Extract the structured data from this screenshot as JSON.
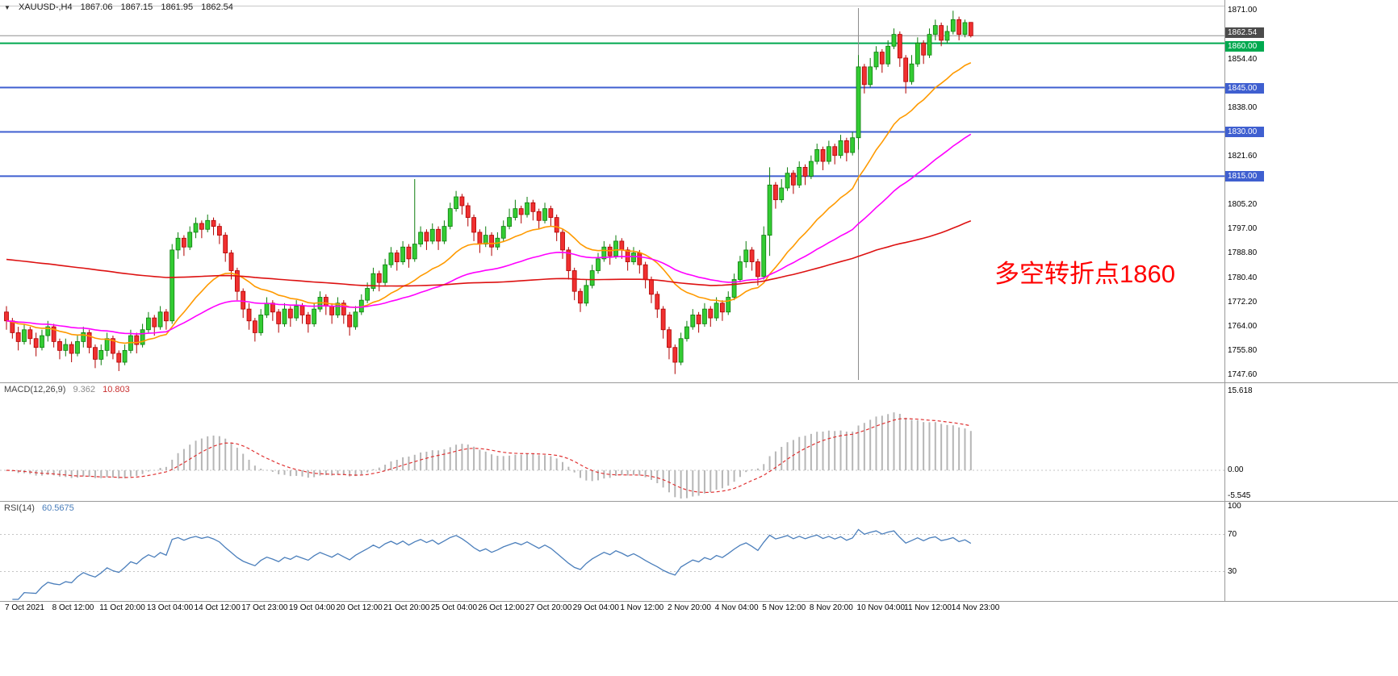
{
  "window": {
    "symbol_period": "XAUUSD-,H4",
    "open": "1867.06",
    "high": "1867.15",
    "low": "1861.95",
    "close": "1862.54"
  },
  "annotation": {
    "text": "多空转折点1860",
    "color": "#ff0000"
  },
  "price_axis": {
    "current_price": {
      "label": "1862.54",
      "value": 1862.54,
      "bg": "#4b4b4b"
    },
    "ticks": [
      {
        "label": "1871.00",
        "value": 1871.0
      },
      {
        "label": "1854.40",
        "value": 1854.4
      },
      {
        "label": "1838.00",
        "value": 1838.0
      },
      {
        "label": "1821.60",
        "value": 1821.6
      },
      {
        "label": "1805.20",
        "value": 1805.2
      },
      {
        "label": "1797.00",
        "value": 1797.0
      },
      {
        "label": "1788.80",
        "value": 1788.8
      },
      {
        "label": "1780.40",
        "value": 1780.4
      },
      {
        "label": "1772.20",
        "value": 1772.2
      },
      {
        "label": "1764.00",
        "value": 1764.0
      },
      {
        "label": "1755.80",
        "value": 1755.8
      },
      {
        "label": "1747.60",
        "value": 1747.6
      }
    ]
  },
  "hlines": [
    {
      "label": "1860.00",
      "value": 1860.0,
      "color": "#00A94F"
    },
    {
      "label": "1845.00",
      "value": 1845.0,
      "color": "#3F5FD0"
    },
    {
      "label": "1830.00",
      "value": 1830.0,
      "color": "#3F5FD0"
    },
    {
      "label": "1815.00",
      "value": 1815.0,
      "color": "#3F5FD0"
    }
  ],
  "macd_panel": {
    "label": "MACD(12,26,9)",
    "value_main": "9.362",
    "value_signal": "10.803",
    "axis": [
      "15.618",
      "0.00",
      "-5.545"
    ]
  },
  "rsi_panel": {
    "label": "RSI(14)",
    "value": "60.5675",
    "axis": [
      "100",
      "70",
      "30"
    ],
    "levels": [
      70,
      30
    ]
  },
  "time_axis": {
    "bars_per_label": 8,
    "labels": [
      "7 Oct 2021",
      "8 Oct 12:00",
      "11 Oct 20:00",
      "13 Oct 04:00",
      "14 Oct 12:00",
      "17 Oct 23:00",
      "19 Oct 04:00",
      "20 Oct 12:00",
      "21 Oct 20:00",
      "25 Oct 04:00",
      "26 Oct 12:00",
      "27 Oct 20:00",
      "29 Oct 04:00",
      "1 Nov 12:00",
      "2 Nov 20:00",
      "4 Nov 04:00",
      "5 Nov 12:00",
      "8 Nov 20:00",
      "10 Nov 04:00",
      "11 Nov 12:00",
      "14 Nov 23:00"
    ]
  },
  "chart_data": {
    "type": "candlestick",
    "symbol": "XAUUSD-",
    "timeframe": "H4",
    "ylim": [
      1746,
      1873
    ],
    "vline_bar_index": 144,
    "colors": {
      "up": "#33CC33",
      "up_border": "#0E7D0E",
      "down": "#F03030",
      "down_border": "#B00000"
    },
    "moving_averages": [
      {
        "name": "ma-fast",
        "type": "ema",
        "period": 21,
        "color": "#FF9A00"
      },
      {
        "name": "ma-mid",
        "type": "ema",
        "period": 55,
        "color": "#FF00FF"
      },
      {
        "name": "ma-slow",
        "type": "sma",
        "period": 120,
        "color": "#DD1111",
        "seed": 1787
      }
    ],
    "indicators": [
      {
        "name": "MACD",
        "params": [
          12,
          26,
          9
        ],
        "shown_values": [
          9.362,
          10.803
        ],
        "axis_range": [
          -5.545,
          15.618
        ]
      },
      {
        "name": "RSI",
        "params": [
          14
        ],
        "shown_value": 60.5675,
        "levels": [
          30,
          70
        ]
      }
    ],
    "horizontal_levels": [
      1860,
      1845,
      1830,
      1815
    ],
    "candles": [
      [
        1769,
        1771,
        1763,
        1766
      ],
      [
        1766,
        1767,
        1760,
        1762
      ],
      [
        1762,
        1764,
        1756,
        1759
      ],
      [
        1759,
        1765,
        1758,
        1763
      ],
      [
        1763,
        1764,
        1758,
        1760
      ],
      [
        1760,
        1762,
        1754,
        1757
      ],
      [
        1757,
        1763,
        1756,
        1761
      ],
      [
        1761,
        1766,
        1759,
        1764
      ],
      [
        1764,
        1765,
        1757,
        1759
      ],
      [
        1759,
        1760,
        1753,
        1756
      ],
      [
        1756,
        1760,
        1754,
        1758
      ],
      [
        1758,
        1759,
        1752,
        1755
      ],
      [
        1755,
        1761,
        1754,
        1759
      ],
      [
        1759,
        1764,
        1757,
        1762
      ],
      [
        1762,
        1763,
        1755,
        1757
      ],
      [
        1757,
        1758,
        1750,
        1753
      ],
      [
        1753,
        1758,
        1751,
        1756
      ],
      [
        1756,
        1762,
        1754,
        1760
      ],
      [
        1760,
        1761,
        1753,
        1755
      ],
      [
        1755,
        1756,
        1749,
        1752
      ],
      [
        1752,
        1758,
        1751,
        1756
      ],
      [
        1756,
        1763,
        1755,
        1761
      ],
      [
        1761,
        1762,
        1755,
        1758
      ],
      [
        1758,
        1765,
        1757,
        1763
      ],
      [
        1763,
        1769,
        1762,
        1767
      ],
      [
        1767,
        1768,
        1761,
        1764
      ],
      [
        1764,
        1771,
        1763,
        1769
      ],
      [
        1769,
        1770,
        1763,
        1766
      ],
      [
        1766,
        1792,
        1765,
        1790
      ],
      [
        1790,
        1796,
        1787,
        1794
      ],
      [
        1794,
        1795,
        1788,
        1791
      ],
      [
        1791,
        1798,
        1790,
        1796
      ],
      [
        1796,
        1801,
        1794,
        1799
      ],
      [
        1799,
        1800,
        1794,
        1797
      ],
      [
        1797,
        1802,
        1796,
        1800
      ],
      [
        1800,
        1801,
        1795,
        1798
      ],
      [
        1798,
        1799,
        1792,
        1795
      ],
      [
        1795,
        1796,
        1786,
        1789
      ],
      [
        1789,
        1790,
        1780,
        1783
      ],
      [
        1783,
        1784,
        1773,
        1776
      ],
      [
        1776,
        1777,
        1767,
        1770
      ],
      [
        1770,
        1772,
        1763,
        1766
      ],
      [
        1766,
        1767,
        1759,
        1762
      ],
      [
        1762,
        1770,
        1761,
        1768
      ],
      [
        1768,
        1774,
        1767,
        1772
      ],
      [
        1772,
        1773,
        1766,
        1769
      ],
      [
        1769,
        1770,
        1762,
        1765
      ],
      [
        1765,
        1772,
        1764,
        1770
      ],
      [
        1770,
        1771,
        1764,
        1767
      ],
      [
        1767,
        1773,
        1766,
        1771
      ],
      [
        1771,
        1772,
        1765,
        1768
      ],
      [
        1768,
        1769,
        1762,
        1765
      ],
      [
        1765,
        1772,
        1764,
        1770
      ],
      [
        1770,
        1776,
        1769,
        1774
      ],
      [
        1774,
        1775,
        1768,
        1771
      ],
      [
        1771,
        1772,
        1765,
        1768
      ],
      [
        1768,
        1774,
        1767,
        1772
      ],
      [
        1772,
        1773,
        1765,
        1768
      ],
      [
        1768,
        1769,
        1761,
        1764
      ],
      [
        1764,
        1771,
        1763,
        1769
      ],
      [
        1769,
        1775,
        1768,
        1773
      ],
      [
        1773,
        1779,
        1772,
        1777
      ],
      [
        1777,
        1784,
        1776,
        1782
      ],
      [
        1782,
        1783,
        1776,
        1779
      ],
      [
        1779,
        1787,
        1778,
        1785
      ],
      [
        1785,
        1791,
        1784,
        1789
      ],
      [
        1789,
        1790,
        1783,
        1786
      ],
      [
        1786,
        1793,
        1785,
        1791
      ],
      [
        1791,
        1792,
        1784,
        1787
      ],
      [
        1787,
        1814,
        1786,
        1792
      ],
      [
        1792,
        1798,
        1791,
        1796
      ],
      [
        1796,
        1797,
        1790,
        1793
      ],
      [
        1793,
        1799,
        1792,
        1797
      ],
      [
        1797,
        1798,
        1790,
        1793
      ],
      [
        1793,
        1800,
        1792,
        1798
      ],
      [
        1798,
        1806,
        1797,
        1804
      ],
      [
        1804,
        1810,
        1803,
        1808
      ],
      [
        1808,
        1809,
        1802,
        1805
      ],
      [
        1805,
        1806,
        1798,
        1801
      ],
      [
        1801,
        1802,
        1793,
        1796
      ],
      [
        1796,
        1797,
        1789,
        1792
      ],
      [
        1792,
        1798,
        1791,
        1795
      ],
      [
        1795,
        1796,
        1788,
        1791
      ],
      [
        1791,
        1796,
        1790,
        1794
      ],
      [
        1794,
        1800,
        1793,
        1798
      ],
      [
        1798,
        1804,
        1797,
        1801
      ],
      [
        1801,
        1807,
        1800,
        1804
      ],
      [
        1804,
        1805,
        1799,
        1802
      ],
      [
        1802,
        1808,
        1801,
        1806
      ],
      [
        1806,
        1807,
        1800,
        1803
      ],
      [
        1803,
        1804,
        1797,
        1800
      ],
      [
        1800,
        1806,
        1799,
        1804
      ],
      [
        1804,
        1805,
        1798,
        1801
      ],
      [
        1801,
        1802,
        1793,
        1796
      ],
      [
        1796,
        1797,
        1787,
        1790
      ],
      [
        1790,
        1791,
        1780,
        1783
      ],
      [
        1783,
        1784,
        1773,
        1776
      ],
      [
        1776,
        1777,
        1769,
        1772
      ],
      [
        1772,
        1780,
        1771,
        1778
      ],
      [
        1778,
        1785,
        1777,
        1783
      ],
      [
        1783,
        1789,
        1782,
        1787
      ],
      [
        1787,
        1793,
        1786,
        1791
      ],
      [
        1791,
        1792,
        1785,
        1788
      ],
      [
        1788,
        1795,
        1787,
        1793
      ],
      [
        1793,
        1794,
        1787,
        1790
      ],
      [
        1790,
        1791,
        1783,
        1786
      ],
      [
        1786,
        1791,
        1785,
        1789
      ],
      [
        1789,
        1790,
        1782,
        1785
      ],
      [
        1785,
        1786,
        1777,
        1780
      ],
      [
        1780,
        1781,
        1772,
        1775
      ],
      [
        1775,
        1776,
        1767,
        1770
      ],
      [
        1770,
        1771,
        1760,
        1763
      ],
      [
        1763,
        1764,
        1753,
        1757
      ],
      [
        1757,
        1758,
        1748,
        1752
      ],
      [
        1752,
        1762,
        1751,
        1760
      ],
      [
        1760,
        1766,
        1759,
        1764
      ],
      [
        1764,
        1770,
        1763,
        1768
      ],
      [
        1768,
        1769,
        1762,
        1765
      ],
      [
        1765,
        1772,
        1764,
        1770
      ],
      [
        1770,
        1771,
        1764,
        1767
      ],
      [
        1767,
        1774,
        1766,
        1772
      ],
      [
        1772,
        1773,
        1766,
        1769
      ],
      [
        1769,
        1776,
        1768,
        1774
      ],
      [
        1774,
        1782,
        1773,
        1780
      ],
      [
        1780,
        1788,
        1779,
        1786
      ],
      [
        1786,
        1793,
        1784,
        1790
      ],
      [
        1790,
        1791,
        1783,
        1786
      ],
      [
        1786,
        1787,
        1778,
        1781
      ],
      [
        1781,
        1798,
        1780,
        1795
      ],
      [
        1795,
        1818,
        1788,
        1812
      ],
      [
        1812,
        1813,
        1804,
        1807
      ],
      [
        1807,
        1814,
        1806,
        1811
      ],
      [
        1811,
        1818,
        1810,
        1816
      ],
      [
        1816,
        1817,
        1809,
        1812
      ],
      [
        1812,
        1820,
        1811,
        1818
      ],
      [
        1818,
        1819,
        1812,
        1815
      ],
      [
        1815,
        1822,
        1814,
        1820
      ],
      [
        1820,
        1826,
        1819,
        1824
      ],
      [
        1824,
        1825,
        1817,
        1820
      ],
      [
        1820,
        1827,
        1819,
        1825
      ],
      [
        1825,
        1826,
        1819,
        1822
      ],
      [
        1822,
        1829,
        1821,
        1827
      ],
      [
        1827,
        1828,
        1820,
        1823
      ],
      [
        1823,
        1830,
        1822,
        1828
      ],
      [
        1828,
        1856,
        1824,
        1852
      ],
      [
        1852,
        1853,
        1843,
        1846
      ],
      [
        1846,
        1855,
        1845,
        1852
      ],
      [
        1852,
        1859,
        1851,
        1857
      ],
      [
        1857,
        1858,
        1850,
        1853
      ],
      [
        1853,
        1861,
        1852,
        1859
      ],
      [
        1859,
        1865,
        1858,
        1863
      ],
      [
        1863,
        1864,
        1852,
        1855
      ],
      [
        1855,
        1856,
        1843,
        1847
      ],
      [
        1847,
        1856,
        1846,
        1853
      ],
      [
        1853,
        1862,
        1852,
        1860
      ],
      [
        1860,
        1861,
        1853,
        1856
      ],
      [
        1856,
        1865,
        1855,
        1863
      ],
      [
        1863,
        1868,
        1861,
        1866
      ],
      [
        1866,
        1867,
        1859,
        1861
      ],
      [
        1861,
        1866,
        1860,
        1864
      ],
      [
        1864,
        1871,
        1863,
        1868
      ],
      [
        1868,
        1869,
        1861,
        1863
      ],
      [
        1863,
        1868,
        1862,
        1867
      ],
      [
        1867.06,
        1867.15,
        1861.95,
        1862.54
      ]
    ]
  }
}
